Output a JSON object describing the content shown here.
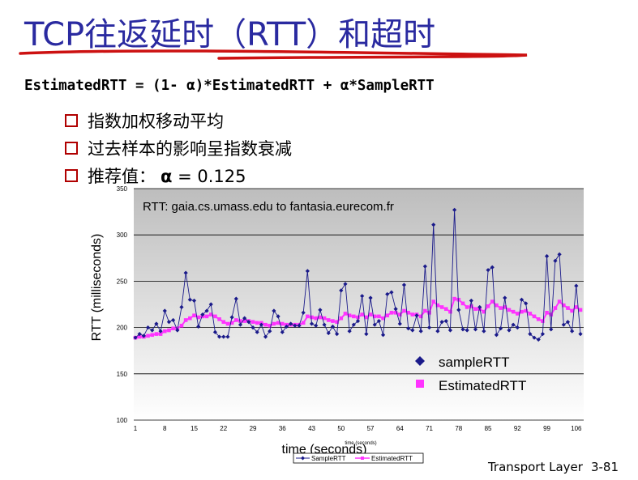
{
  "slide": {
    "title": "TCP往返延时（RTT）和超时",
    "formula": "EstimatedRTT = (1- α)*EstimatedRTT + α*SampleRTT",
    "bullets": [
      "指数加权移动平均",
      "过去样本的影响呈指数衰减",
      "推荐值："
    ],
    "alpha_symbol": "α",
    "alpha_value": "= 0.125",
    "footer_label": "Transport Layer",
    "page_number": "3-81"
  },
  "chart_data": {
    "type": "line",
    "title": "RTT: gaia.cs.umass.edu to fantasia.eurecom.fr",
    "ylabel": "RTT (milliseconds)",
    "xlabel": "time (seconds)",
    "xlabel_small": "time (seconds)",
    "ylim": [
      100,
      350
    ],
    "yticks": [
      "350",
      "300",
      "250",
      "200",
      "150",
      "100"
    ],
    "xticks": [
      "1",
      "8",
      "15",
      "22",
      "29",
      "36",
      "43",
      "50",
      "57",
      "64",
      "71",
      "78",
      "85",
      "92",
      "99",
      "106"
    ],
    "grid": true,
    "colors": {
      "sample": "#1a1a8a",
      "estimated": "#ff33ff",
      "plot_top": "#bdbdbd",
      "plot_bottom": "#ffffff"
    },
    "series": [
      {
        "name": "SampleRTT",
        "legend_big": "sampleRTT",
        "values": [
          189,
          193,
          191,
          200,
          197,
          204,
          196,
          218,
          206,
          208,
          197,
          222,
          259,
          230,
          229,
          201,
          214,
          218,
          225,
          195,
          190,
          190,
          190,
          211,
          231,
          203,
          210,
          206,
          200,
          195,
          203,
          190,
          196,
          218,
          212,
          195,
          201,
          204,
          202,
          202,
          216,
          261,
          204,
          202,
          219,
          203,
          194,
          201,
          193,
          240,
          247,
          196,
          203,
          207,
          234,
          193,
          232,
          203,
          207,
          192,
          236,
          238,
          220,
          204,
          246,
          199,
          197,
          213,
          196,
          266,
          200,
          311,
          196,
          206,
          207,
          197,
          327,
          219,
          198,
          197,
          229,
          198,
          222,
          196,
          262,
          265,
          192,
          199,
          232,
          197,
          203,
          200,
          230,
          226,
          193,
          189,
          187,
          193,
          277,
          198,
          272,
          279,
          203,
          206,
          196,
          245,
          193
        ],
        "marker": "diamond"
      },
      {
        "name": "EstimatedRTT",
        "legend_big": "EstimatedRTT",
        "values": [
          189,
          190,
          190,
          191,
          192,
          193,
          193,
          196,
          197,
          199,
          199,
          202,
          208,
          210,
          213,
          211,
          212,
          212,
          214,
          212,
          209,
          206,
          204,
          205,
          208,
          207,
          207,
          207,
          206,
          205,
          205,
          203,
          202,
          204,
          205,
          204,
          203,
          203,
          203,
          203,
          205,
          212,
          211,
          210,
          211,
          210,
          208,
          207,
          206,
          210,
          215,
          213,
          212,
          211,
          214,
          211,
          214,
          212,
          212,
          210,
          213,
          216,
          216,
          214,
          218,
          216,
          214,
          214,
          212,
          218,
          216,
          228,
          224,
          222,
          220,
          217,
          231,
          230,
          226,
          222,
          223,
          220,
          220,
          217,
          223,
          228,
          224,
          221,
          222,
          219,
          217,
          215,
          217,
          218,
          215,
          212,
          209,
          207,
          216,
          214,
          221,
          228,
          224,
          221,
          218,
          222,
          219
        ],
        "marker": "square"
      }
    ],
    "legend": {
      "placement": "bottom-right (large), bottom (small)"
    }
  }
}
